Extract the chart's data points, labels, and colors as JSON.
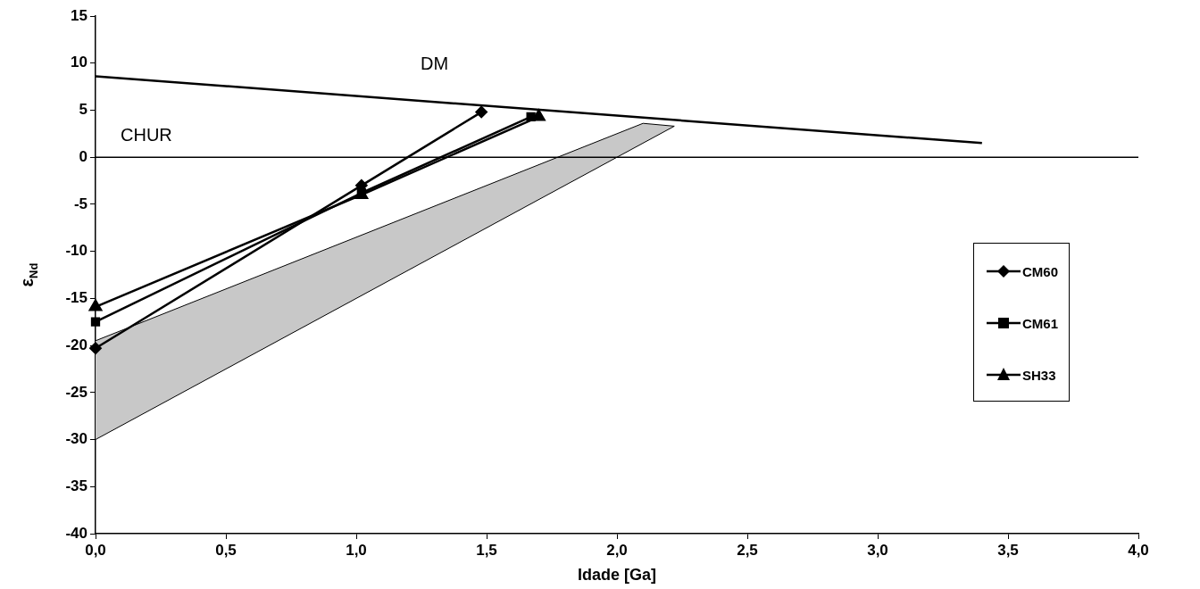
{
  "chart_data": {
    "type": "line",
    "xlabel": "Idade [Ga]",
    "ylabel": "ε$_{Nd}$",
    "xlim": [
      0,
      4
    ],
    "xticks": [
      {
        "value": 0,
        "label": "0,0"
      },
      {
        "value": 0.5,
        "label": "0,5"
      },
      {
        "value": 1,
        "label": "1,0"
      },
      {
        "value": 1.5,
        "label": "1,5"
      },
      {
        "value": 2,
        "label": "2,0"
      },
      {
        "value": 2.5,
        "label": "2,5"
      },
      {
        "value": 3,
        "label": "3,0"
      },
      {
        "value": 3.5,
        "label": "3,5"
      },
      {
        "value": 4,
        "label": "4,0"
      }
    ],
    "ylim": [
      -40,
      15
    ],
    "yticks": [
      -40,
      -35,
      -30,
      -25,
      -20,
      -15,
      -10,
      -5,
      0,
      5,
      10,
      15
    ],
    "grid": false,
    "legend": "right",
    "line_style": "solid",
    "series": [
      {
        "type": "area",
        "color": "#c8c8c8",
        "x": [
          0,
          2.1,
          2.22,
          0
        ],
        "values": [
          -19.5,
          3.6,
          3.3,
          -30
        ]
      },
      {
        "color": "#000000",
        "marker": "none",
        "x": [
          0,
          3.4
        ],
        "values": [
          8.6,
          1.5
        ]
      },
      {
        "name": "CM60",
        "color": "#000000",
        "marker": "diamond",
        "x": [
          0,
          1.02,
          1.48
        ],
        "values": [
          -20.3,
          -3,
          4.8
        ]
      },
      {
        "name": "CM61",
        "color": "#000000",
        "marker": "square",
        "x": [
          0,
          1.02,
          1.67
        ],
        "values": [
          -17.5,
          -3.8,
          4.3
        ]
      },
      {
        "name": "SH33",
        "color": "#000000",
        "marker": "triangle",
        "x": [
          0,
          1.02,
          1.7
        ],
        "values": [
          -15.9,
          -4,
          4.3
        ]
      }
    ],
    "ref_lines": [
      {
        "axis": "y",
        "value": 0,
        "label": "CHUR",
        "color": "#000000"
      }
    ],
    "annotations": [
      "DM"
    ]
  }
}
